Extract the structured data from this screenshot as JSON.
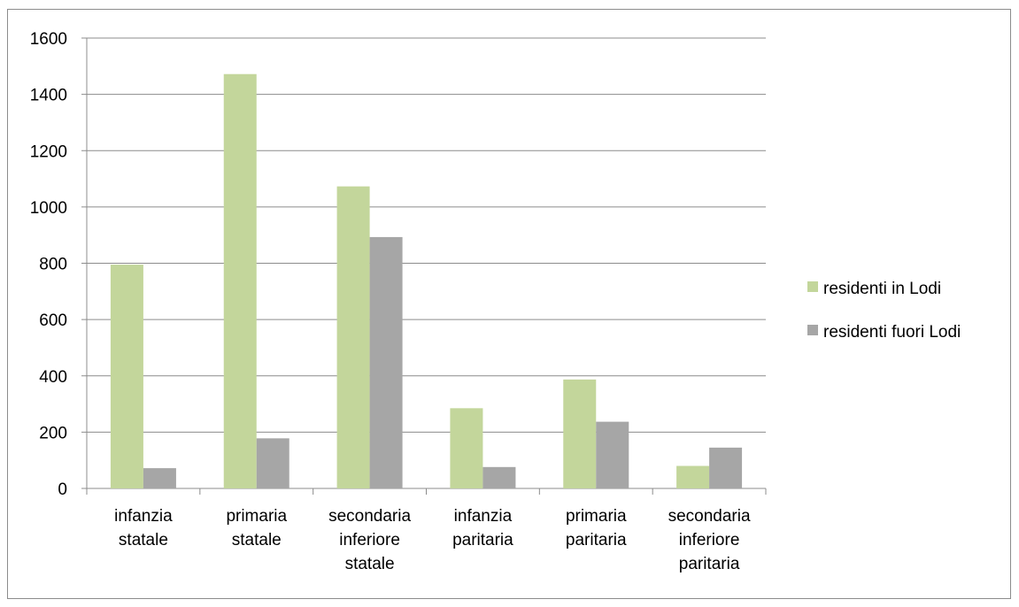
{
  "chart_data": {
    "type": "bar",
    "categories": [
      [
        "infanzia",
        "statale"
      ],
      [
        "primaria",
        "statale"
      ],
      [
        "secondaria",
        "inferiore",
        "statale"
      ],
      [
        "infanzia",
        "paritaria"
      ],
      [
        "primaria",
        "paritaria"
      ],
      [
        "secondaria",
        "inferiore",
        "paritaria"
      ]
    ],
    "series": [
      {
        "name": "residenti in Lodi",
        "color": "#c3d69b",
        "values": [
          795,
          1472,
          1073,
          285,
          387,
          80
        ]
      },
      {
        "name": "residenti fuori Lodi",
        "color": "#a6a6a6",
        "values": [
          72,
          178,
          893,
          76,
          237,
          145
        ]
      }
    ],
    "ylim": [
      0,
      1600
    ],
    "yticks": [
      "0",
      "200",
      "400",
      "600",
      "800",
      "1000",
      "1200",
      "1400",
      "1600"
    ],
    "grid": true,
    "legend_position": "right"
  }
}
